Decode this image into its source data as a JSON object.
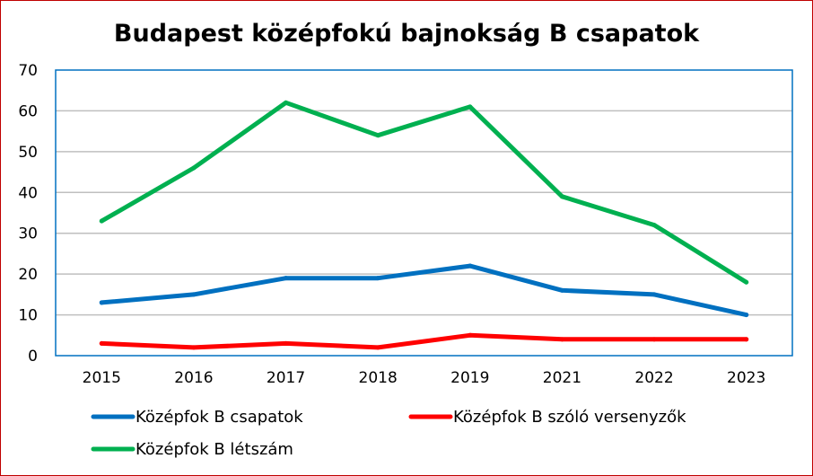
{
  "chart_data": {
    "type": "line",
    "title": "Budapest középfokú bajnokság B csapatok",
    "xlabel": "",
    "ylabel": "",
    "categories": [
      "2015",
      "2016",
      "2017",
      "2018",
      "2019",
      "2021",
      "2022",
      "2023"
    ],
    "ylim": [
      0,
      70
    ],
    "yticks": [
      0,
      10,
      20,
      30,
      40,
      50,
      60,
      70
    ],
    "grid": true,
    "legend_position": "bottom",
    "series": [
      {
        "name": "Középfok B csapatok",
        "color": "#0070c0",
        "values": [
          13,
          15,
          19,
          19,
          22,
          16,
          15,
          10
        ]
      },
      {
        "name": "Középfok B szóló versenyzők",
        "color": "#ff0000",
        "values": [
          3,
          2,
          3,
          2,
          5,
          4,
          4,
          4
        ]
      },
      {
        "name": "Középfok B létszám",
        "color": "#00b050",
        "values": [
          33,
          46,
          62,
          54,
          61,
          39,
          32,
          18
        ]
      }
    ],
    "colors": {
      "gridline": "#bfbfbf",
      "plot_border": "#0070c0",
      "frame_border": "#c00000"
    }
  }
}
